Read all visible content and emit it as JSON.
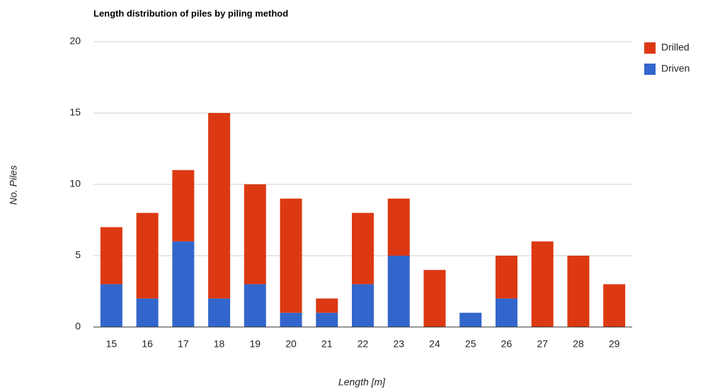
{
  "chart_data": {
    "type": "stacked_bar",
    "title": "Length distribution of piles by piling method",
    "x_label": "Length [m]",
    "y_label": "No. Piles",
    "categories": [
      "15",
      "16",
      "17",
      "18",
      "19",
      "20",
      "21",
      "22",
      "23",
      "24",
      "25",
      "26",
      "27",
      "28",
      "29"
    ],
    "series": [
      {
        "name": "Driven",
        "color": "#3366cc",
        "values": [
          3,
          2,
          6,
          2,
          3,
          1,
          1,
          3,
          5,
          0,
          1,
          2,
          0,
          0,
          0
        ]
      },
      {
        "name": "Drilled",
        "color": "#dc3912",
        "values": [
          4,
          6,
          5,
          13,
          7,
          8,
          1,
          5,
          4,
          4,
          0,
          3,
          6,
          5,
          3
        ]
      }
    ],
    "ylim": [
      0,
      20
    ],
    "yticks": [
      0,
      5,
      10,
      15,
      20
    ],
    "grid": true,
    "legend": "right"
  }
}
